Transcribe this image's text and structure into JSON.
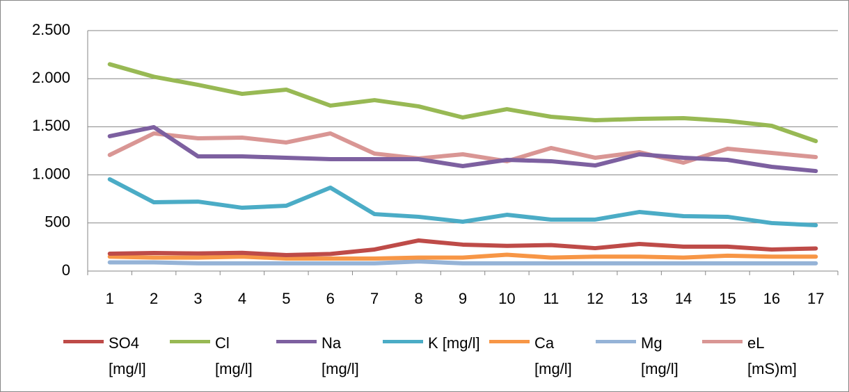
{
  "chart_data": {
    "type": "line",
    "categories": [
      "1",
      "2",
      "3",
      "4",
      "5",
      "6",
      "7",
      "8",
      "9",
      "10",
      "11",
      "12",
      "13",
      "14",
      "15",
      "16",
      "17"
    ],
    "series": [
      {
        "name": "SO4 [mg/l]",
        "color": "#be4b48",
        "values": [
          181,
          188,
          183,
          190,
          166,
          178,
          224,
          318,
          275,
          262,
          270,
          238,
          282,
          254,
          254,
          224,
          235
        ]
      },
      {
        "name": "Cl [mg/l]",
        "color": "#98b954",
        "values": [
          2150,
          2020,
          1936,
          1842,
          1886,
          1720,
          1777,
          1712,
          1597,
          1683,
          1604,
          1568,
          1582,
          1590,
          1561,
          1510,
          1351
        ]
      },
      {
        "name": "Na [mg/l]",
        "color": "#7d60a0",
        "values": [
          1402,
          1496,
          1192,
          1192,
          1178,
          1163,
          1163,
          1163,
          1091,
          1156,
          1142,
          1098,
          1214,
          1178,
          1156,
          1084,
          1040
        ]
      },
      {
        "name": "K [mg/l]",
        "color": "#4bacc6",
        "values": [
          954,
          715,
          722,
          658,
          679,
          867,
          592,
          564,
          513,
          585,
          535,
          535,
          614,
          571,
          564,
          499,
          477
        ]
      },
      {
        "name": "Ca [mg/l]",
        "color": "#f79646",
        "values": [
          150,
          140,
          140,
          150,
          130,
          130,
          130,
          140,
          140,
          170,
          140,
          150,
          150,
          140,
          160,
          150,
          150
        ]
      },
      {
        "name": "Mg [mg/l]",
        "color": "#95b3d7",
        "values": [
          90,
          90,
          80,
          80,
          80,
          80,
          80,
          100,
          80,
          80,
          80,
          80,
          80,
          80,
          80,
          80,
          80
        ]
      },
      {
        "name": "eL [mS)m]",
        "color": "#d99694",
        "values": [
          1207,
          1431,
          1380,
          1387,
          1337,
          1431,
          1221,
          1171,
          1214,
          1142,
          1279,
          1178,
          1236,
          1127,
          1272,
          1228,
          1185
        ]
      }
    ],
    "ylim": [
      0,
      2500
    ],
    "yticks": [
      0,
      500,
      {
        "value": 1000,
        "label": "1.000"
      },
      {
        "value": 1500,
        "label": "1.500"
      },
      {
        "value": 2000,
        "label": "2.000"
      },
      {
        "value": 2500,
        "label": "2.500"
      }
    ],
    "grid": true
  }
}
